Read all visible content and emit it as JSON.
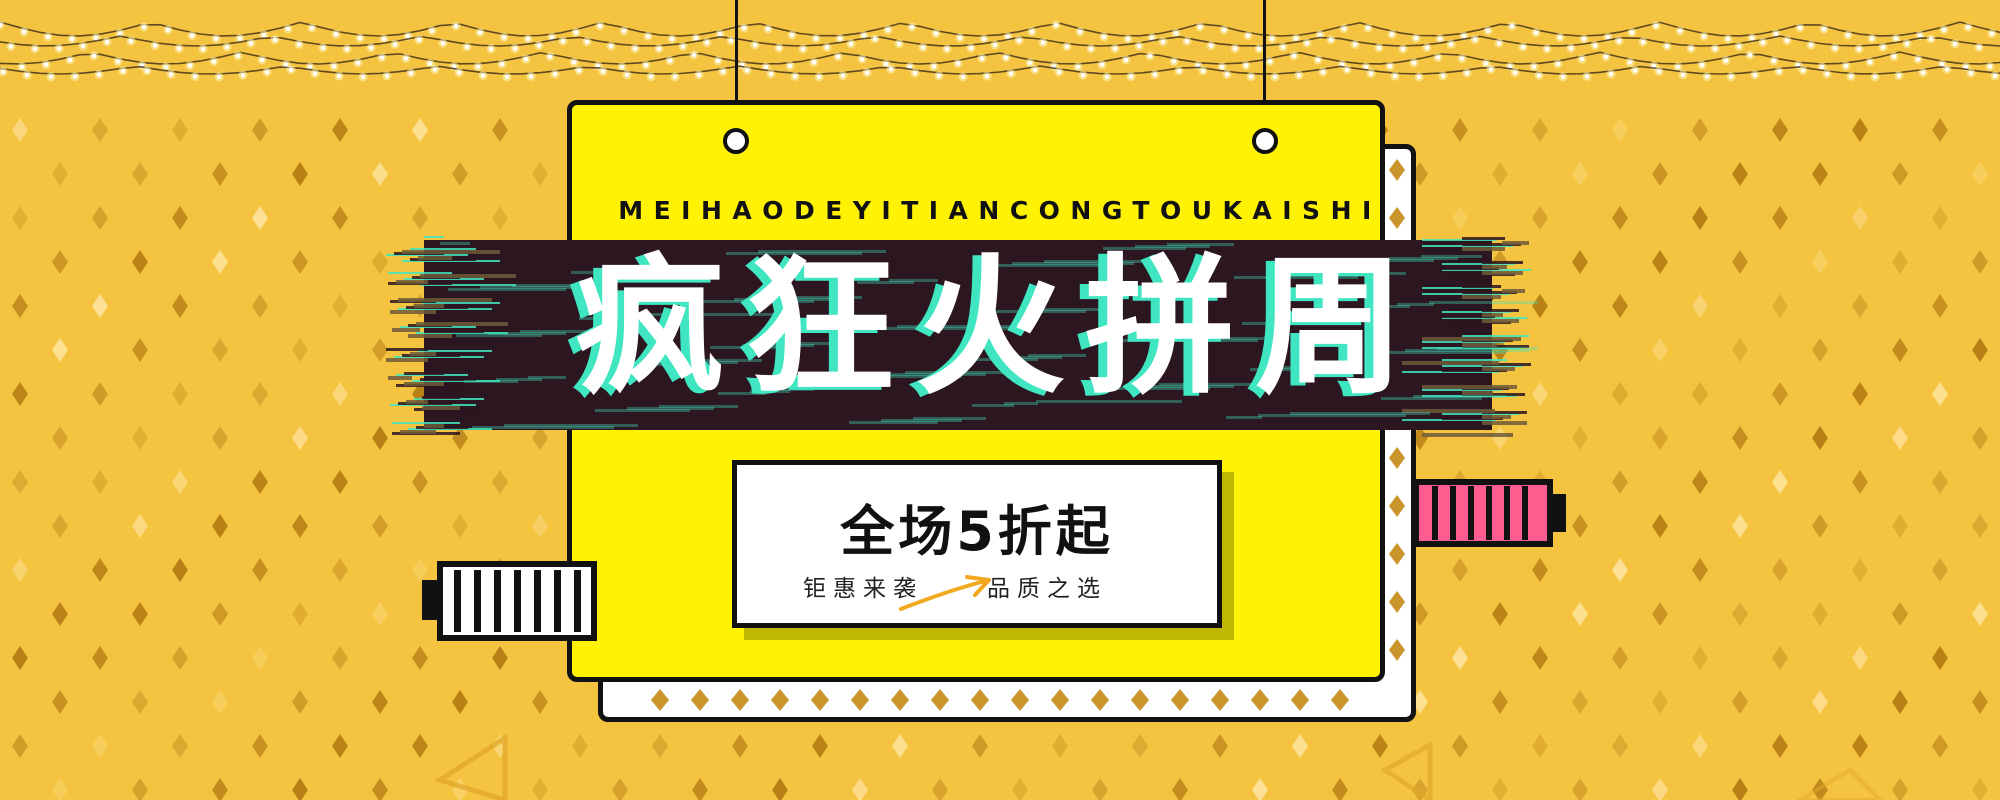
{
  "banner": {
    "subtitle": "MEIHAODEYITIANCONGTOUKAISHI",
    "title": "疯狂火拼周",
    "promo": {
      "headline": "全场5折起",
      "tagline_left": "钜惠来袭",
      "tagline_right": "品质之选"
    }
  },
  "colors": {
    "background": "#f4c441",
    "card": "#fff204",
    "title_band": "#2c1620",
    "glitch": "#3fe6c1",
    "accent_pink": "#ff5d8f",
    "diamond": "#b57c10"
  }
}
